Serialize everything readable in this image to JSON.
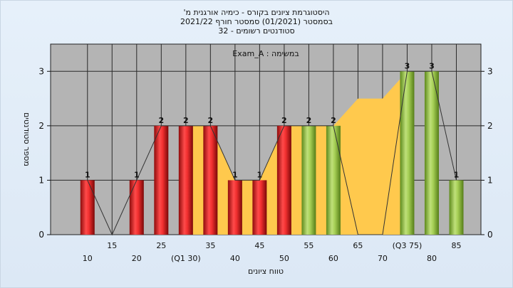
{
  "titles": {
    "line1": "היסטוגרמת ציונים בקורס - כימיה אורגנית מ'",
    "line2": "בסמסטר  (01/2021)  סמסטר חורף 2021/22",
    "line3": "סטודנטים רשומים - 32"
  },
  "chart_data": {
    "type": "bar",
    "annotation": "במשימה : Exam_A",
    "xlabel": "טווח ציונים",
    "ylabel": "מספר סטודנטים",
    "ylim": [
      0,
      3.5
    ],
    "y_ticks": [
      0,
      1,
      2,
      3
    ],
    "x_range": [
      2.5,
      90
    ],
    "categories": [
      10,
      15,
      20,
      25,
      30,
      35,
      40,
      45,
      50,
      55,
      60,
      65,
      70,
      75,
      80,
      85
    ],
    "tick_labels": [
      "10",
      "15",
      "20",
      "25",
      "(Q1 30)",
      "35",
      "40",
      "45",
      "50",
      "55",
      "60",
      "65",
      "70",
      "(Q3 75)",
      "80",
      "85"
    ],
    "values": [
      1,
      0,
      1,
      2,
      2,
      2,
      1,
      1,
      2,
      2,
      2,
      0,
      0,
      3,
      3,
      1
    ],
    "bar_colors": [
      "red",
      "red",
      "red",
      "red",
      "red",
      "red",
      "red",
      "red",
      "red",
      "green",
      "green",
      "green",
      "green",
      "green",
      "green",
      "green"
    ],
    "shown_value_labels": [
      "1",
      "",
      "1",
      "2",
      "2",
      "2",
      "1",
      "1",
      "2",
      "2",
      "2",
      "",
      "",
      "3",
      "3",
      "1"
    ],
    "iqr_area": {
      "x": [
        30,
        35,
        40,
        45,
        50,
        55,
        60,
        65,
        70,
        75
      ],
      "y": [
        2,
        2,
        1,
        1,
        2,
        2,
        2,
        2.5,
        2.5,
        3
      ]
    },
    "grid": true,
    "colors": {
      "plot_bg": "#b4b4b4",
      "red_bar": "#e02020",
      "green_bar": "#8fbf3a",
      "area": "#ffc94d"
    }
  }
}
